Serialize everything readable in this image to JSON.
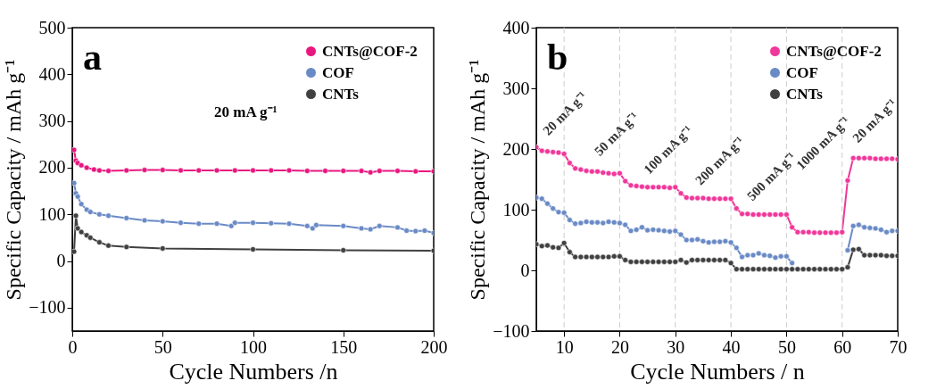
{
  "chart_data": [
    {
      "type": "line",
      "title": "a",
      "xlabel": "Cycle Numbers /n",
      "ylabel": "Specific Capacity / mAh g⁻¹",
      "annotations": [
        "20 mA g⁻¹"
      ],
      "xlim": [
        0,
        200
      ],
      "ylim": [
        -150,
        500
      ],
      "xticks": [
        0,
        50,
        100,
        150,
        200
      ],
      "yticks": [
        -100,
        0,
        100,
        200,
        300,
        400,
        500
      ],
      "legend": "top right",
      "marker": "circle",
      "line_style": "solid",
      "grid": false,
      "series": [
        {
          "name": "CNTs@COF-2",
          "color": "#e8177f",
          "x": [
            1,
            2,
            3,
            5,
            8,
            12,
            15,
            20,
            30,
            40,
            50,
            60,
            70,
            80,
            90,
            100,
            110,
            120,
            130,
            140,
            150,
            160,
            165,
            170,
            180,
            190,
            200
          ],
          "values": [
            238,
            215,
            210,
            205,
            200,
            196,
            194,
            193,
            194,
            195,
            195,
            194,
            194,
            194,
            194,
            194,
            194,
            194,
            193,
            193,
            193,
            193,
            190,
            193,
            193,
            192,
            192
          ]
        },
        {
          "name": "COF",
          "color": "#6a8ac6",
          "x": [
            1,
            2,
            3,
            5,
            8,
            10,
            15,
            20,
            30,
            40,
            50,
            60,
            70,
            80,
            88,
            90,
            100,
            110,
            120,
            130,
            133,
            135,
            150,
            160,
            165,
            170,
            180,
            185,
            190,
            195,
            200
          ],
          "values": [
            167,
            145,
            138,
            122,
            110,
            105,
            100,
            97,
            92,
            87,
            85,
            82,
            80,
            80,
            75,
            82,
            82,
            81,
            80,
            75,
            70,
            77,
            75,
            70,
            68,
            75,
            72,
            65,
            64,
            65,
            60
          ]
        },
        {
          "name": "CNTs",
          "color": "#404040",
          "x": [
            1,
            2,
            3,
            5,
            8,
            10,
            15,
            20,
            30,
            50,
            100,
            150,
            200
          ],
          "values": [
            20,
            97,
            70,
            62,
            55,
            50,
            40,
            33,
            30,
            27,
            25,
            23,
            22
          ]
        }
      ]
    },
    {
      "type": "line",
      "title": "b",
      "xlabel": "Cycle Numbers / n",
      "ylabel": "Specific Capacity / mAh g⁻¹",
      "xlim": [
        5,
        70
      ],
      "ylim": [
        -100,
        400
      ],
      "xticks": [
        10,
        20,
        30,
        40,
        50,
        60,
        70
      ],
      "yticks": [
        -100,
        0,
        100,
        200,
        300,
        400
      ],
      "legend": "top right",
      "marker": "circle",
      "line_style": "solid",
      "grid": false,
      "annotations": [
        "20 mA g⁻¹",
        "50 mA g⁻¹",
        "100 mA g⁻¹",
        "200 mA g⁻¹",
        "500 mA g⁻¹",
        "1000 mA g⁻¹",
        "20 mA g⁻¹"
      ],
      "ref_lines": [
        {
          "axis": "x",
          "value": 10,
          "color": "#cccccc",
          "line_style": "dashed"
        },
        {
          "axis": "x",
          "value": 20,
          "color": "#cccccc",
          "line_style": "dashed"
        },
        {
          "axis": "x",
          "value": 30,
          "color": "#cccccc",
          "line_style": "dashed"
        },
        {
          "axis": "x",
          "value": 40,
          "color": "#cccccc",
          "line_style": "dashed"
        },
        {
          "axis": "x",
          "value": 50,
          "color": "#cccccc",
          "line_style": "dashed"
        },
        {
          "axis": "x",
          "value": 60,
          "color": "#cccccc",
          "line_style": "dashed"
        }
      ],
      "x": [
        5,
        6,
        7,
        8,
        9,
        10,
        11,
        12,
        13,
        14,
        15,
        16,
        17,
        18,
        19,
        20,
        21,
        22,
        23,
        24,
        25,
        26,
        27,
        28,
        29,
        30,
        31,
        32,
        33,
        34,
        35,
        36,
        37,
        38,
        39,
        40,
        41,
        42,
        43,
        44,
        45,
        46,
        47,
        48,
        49,
        50,
        51,
        52,
        53,
        54,
        55,
        56,
        57,
        58,
        59,
        60,
        61,
        62,
        63,
        64,
        65,
        66,
        67,
        68,
        69,
        70
      ],
      "series": [
        {
          "name": "CNTs@COF-2",
          "color": "#f0379a",
          "values": [
            203,
            197,
            196,
            195,
            194,
            192,
            177,
            168,
            166,
            164,
            163,
            163,
            161,
            160,
            159,
            160,
            147,
            140,
            139,
            138,
            137,
            137,
            137,
            137,
            136,
            137,
            127,
            120,
            119,
            119,
            119,
            118,
            118,
            118,
            118,
            118,
            102,
            93,
            93,
            92,
            92,
            92,
            92,
            92,
            92,
            92,
            71,
            63,
            63,
            63,
            62,
            62,
            62,
            62,
            62,
            63,
            148,
            185,
            185,
            185,
            185,
            184,
            184,
            184,
            184,
            183
          ]
        },
        {
          "name": "COF",
          "color": "#6a8ac6",
          "values": [
            120,
            118,
            110,
            102,
            96,
            95,
            83,
            77,
            78,
            80,
            79,
            79,
            78,
            80,
            79,
            78,
            75,
            65,
            67,
            71,
            66,
            67,
            66,
            65,
            64,
            65,
            59,
            50,
            50,
            51,
            48,
            46,
            47,
            47,
            48,
            46,
            37,
            22,
            25,
            25,
            28,
            25,
            24,
            21,
            23,
            23,
            12,
            null,
            null,
            null,
            null,
            null,
            null,
            null,
            null,
            null,
            33,
            73,
            75,
            71,
            70,
            69,
            67,
            63,
            65,
            65
          ]
        },
        {
          "name": "CNTs",
          "color": "#404040",
          "values": [
            43,
            40,
            41,
            38,
            37,
            45,
            30,
            22,
            22,
            22,
            22,
            22,
            22,
            22,
            23,
            23,
            17,
            14,
            14,
            14,
            14,
            14,
            14,
            14,
            14,
            14,
            17,
            13,
            17,
            17,
            17,
            17,
            17,
            17,
            17,
            12,
            2,
            2,
            2,
            2,
            2,
            2,
            2,
            2,
            2,
            2,
            2,
            2,
            2,
            2,
            2,
            2,
            2,
            2,
            2,
            2,
            5,
            34,
            35,
            25,
            25,
            25,
            25,
            24,
            24,
            24
          ]
        }
      ]
    }
  ]
}
